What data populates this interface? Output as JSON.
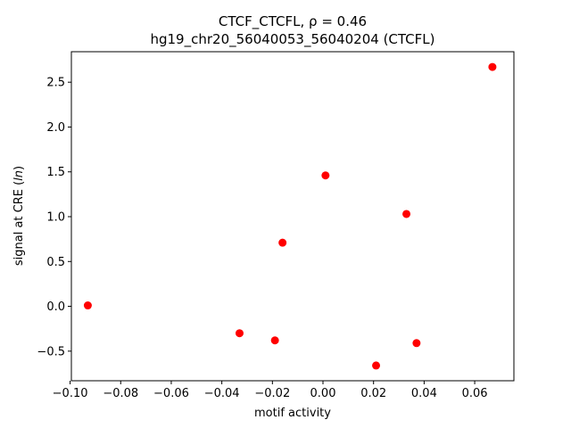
{
  "chart_data": {
    "type": "scatter",
    "title_line1_prefix": "CTCF_CTCFL, ",
    "title_rho": "ρ = 0.46",
    "title_line2": "hg19_chr20_56040053_56040204 (CTCFL)",
    "xlabel": "motif activity",
    "ylabel_prefix": "signal at CRE (",
    "ylabel_italic": "ln",
    "ylabel_suffix": ")",
    "xlim": [
      -0.0995,
      0.0755
    ],
    "ylim": [
      -0.83,
      2.84
    ],
    "x_ticks": [
      -0.1,
      -0.08,
      -0.06,
      -0.04,
      -0.02,
      0.0,
      0.02,
      0.04,
      0.06
    ],
    "x_tick_labels": [
      "−0.10",
      "−0.08",
      "−0.06",
      "−0.04",
      "−0.02",
      "0.00",
      "0.02",
      "0.04",
      "0.06"
    ],
    "y_ticks": [
      -0.5,
      0.0,
      0.5,
      1.0,
      1.5,
      2.0,
      2.5
    ],
    "y_tick_labels": [
      "−0.5",
      "0.0",
      "0.5",
      "1.0",
      "1.5",
      "2.0",
      "2.5"
    ],
    "marker_color": "#ff0000",
    "points": [
      {
        "x": -0.093,
        "y": 0.01
      },
      {
        "x": -0.033,
        "y": -0.3
      },
      {
        "x": -0.019,
        "y": -0.38
      },
      {
        "x": -0.016,
        "y": 0.71
      },
      {
        "x": 0.001,
        "y": 1.46
      },
      {
        "x": 0.021,
        "y": -0.66
      },
      {
        "x": 0.033,
        "y": 1.03
      },
      {
        "x": 0.037,
        "y": -0.41
      },
      {
        "x": 0.067,
        "y": 2.67
      }
    ]
  }
}
